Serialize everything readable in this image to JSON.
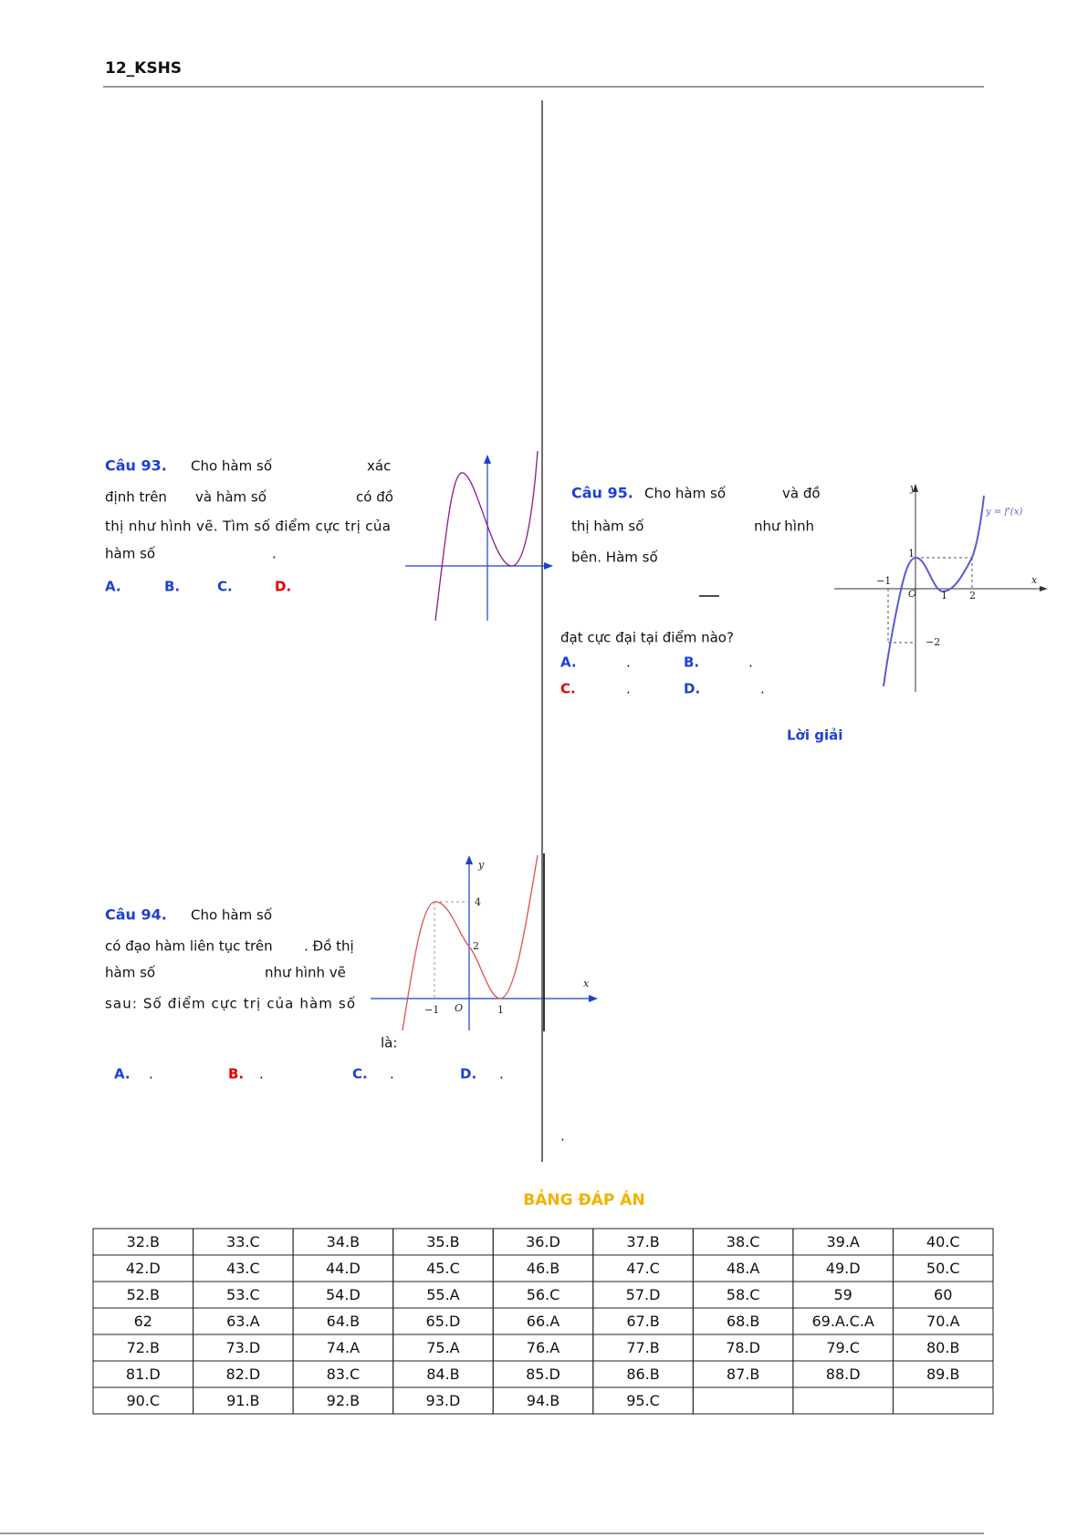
{
  "header": {
    "title": "12_KSHS"
  },
  "q93": {
    "label": "Câu 93.",
    "lines": [
      "Cho hàm số",
      "xác",
      "định trên",
      "và hàm số",
      "có đồ",
      "thị như hình vẽ. Tìm số điểm cực trị của",
      "hàm số",
      "."
    ],
    "options": [
      "A.",
      "B.",
      "C.",
      "D."
    ]
  },
  "q94": {
    "label": "Câu 94.",
    "lines": [
      "Cho hàm số",
      "có đạo hàm liên tục trên",
      ". Đồ thị",
      "hàm số",
      "như hình vẽ",
      "sau: Số điểm cực trị của hàm số",
      "là:"
    ],
    "options": [
      "A.",
      ".",
      "B.",
      ".",
      "C.",
      ".",
      "D.",
      "."
    ],
    "figure": {
      "y_axis": "y",
      "x_axis": "x",
      "labels": [
        "4",
        "2",
        "−1",
        "O",
        "1"
      ]
    }
  },
  "q95": {
    "label": "Câu 95.",
    "lines": [
      "Cho hàm số",
      "và đồ",
      "thị hàm số",
      "như hình",
      "bên. Hàm số",
      "đạt cực đại tại điểm nào?"
    ],
    "options": [
      "A.",
      ".",
      "B.",
      ".",
      "C.",
      ".",
      "D.",
      "."
    ],
    "figure": {
      "y_axis": "y",
      "x_axis": "x",
      "curve_label": "y = f'(x)",
      "labels": [
        "1",
        "O",
        "−1",
        "1",
        "2",
        "−2"
      ]
    },
    "solution": "Lời giải",
    "dot": "."
  },
  "answers": {
    "title": "BẢNG ĐÁP ÁN",
    "rows": [
      [
        "32.B",
        "33.C",
        "34.B",
        "35.B",
        "36.D",
        "37.B",
        "38.C",
        "39.A",
        "40.C"
      ],
      [
        "42.D",
        "43.C",
        "44.D",
        "45.C",
        "46.B",
        "47.C",
        "48.A",
        "49.D",
        "50.C"
      ],
      [
        "52.B",
        "53.C",
        "54.D",
        "55.A",
        "56.C",
        "57.D",
        "58.C",
        "59",
        "60"
      ],
      [
        "62",
        "63.A",
        "64.B",
        "65.D",
        "66.A",
        "67.B",
        "68.B",
        "69.A.C.A",
        "70.A"
      ],
      [
        "72.B",
        "73.D",
        "74.A",
        "75.A",
        "76.A",
        "77.B",
        "78.D",
        "79.C",
        "80.B"
      ],
      [
        "81.D",
        "82.D",
        "83.C",
        "84.B",
        "85.D",
        "86.B",
        "87.B",
        "88.D",
        "89.B"
      ],
      [
        "90.C",
        "91.B",
        "92.B",
        "93.D",
        "94.B",
        "95.C"
      ]
    ]
  }
}
